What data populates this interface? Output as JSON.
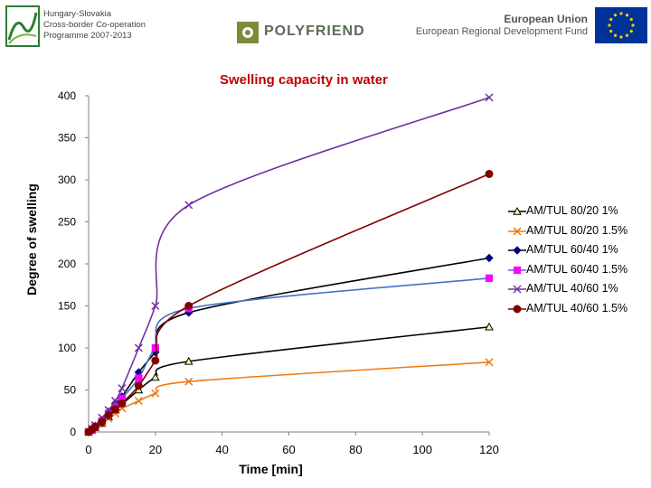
{
  "header": {
    "programme_lines": [
      "Hungary-Slovakia",
      "Cross-border Co-operation",
      "Programme 2007-2013"
    ],
    "project_name": "POLYFRIEND",
    "eu_line1": "European Union",
    "eu_line2": "European Regional Development Fund"
  },
  "chart_data": {
    "type": "line",
    "title": "Swelling capacity in water",
    "xlabel": "Time [min]",
    "ylabel": "Degree of swelling",
    "xlim": [
      0,
      120
    ],
    "ylim": [
      0,
      400
    ],
    "x_ticks": [
      0,
      20,
      40,
      60,
      80,
      100,
      120
    ],
    "y_ticks": [
      0,
      50,
      100,
      150,
      200,
      250,
      300,
      350,
      400
    ],
    "legend_position": "right",
    "series": [
      {
        "name": "AM/TUL 80/20 1%",
        "color": "#000000",
        "line_color": "#000000",
        "marker": "triangle",
        "x": [
          0,
          1,
          2,
          4,
          6,
          8,
          10,
          15,
          20,
          30,
          120
        ],
        "y": [
          0,
          2,
          5,
          10,
          18,
          26,
          33,
          50,
          65,
          84,
          125
        ]
      },
      {
        "name": "AM/TUL 80/20 1.5%",
        "color": "#f07a14",
        "line_color": "#f07a14",
        "marker": "x",
        "x": [
          0,
          1,
          2,
          4,
          6,
          8,
          10,
          15,
          20,
          30,
          120
        ],
        "y": [
          0,
          2,
          5,
          10,
          16,
          22,
          28,
          37,
          46,
          60,
          83
        ]
      },
      {
        "name": "AM/TUL 60/40 1%",
        "color": "#000080",
        "line_color": "#000000",
        "marker": "diamond",
        "x": [
          0,
          1,
          2,
          4,
          6,
          8,
          10,
          15,
          20,
          30,
          120
        ],
        "y": [
          0,
          3,
          7,
          14,
          24,
          34,
          42,
          71,
          95,
          142,
          207
        ]
      },
      {
        "name": "AM/TUL 60/40 1.5%",
        "color": "#ff00ff",
        "line_color": "#4472c4",
        "marker": "square",
        "x": [
          0,
          1,
          2,
          4,
          6,
          8,
          10,
          15,
          20,
          30,
          120
        ],
        "y": [
          0,
          3,
          6,
          13,
          22,
          30,
          40,
          64,
          100,
          147,
          183
        ]
      },
      {
        "name": "AM/TUL 40/60 1%",
        "color": "#7030a0",
        "line_color": "#7030a0",
        "marker": "x",
        "x": [
          0,
          1,
          2,
          4,
          6,
          8,
          10,
          15,
          20,
          30,
          120
        ],
        "y": [
          0,
          4,
          8,
          17,
          26,
          37,
          52,
          100,
          150,
          270,
          398
        ]
      },
      {
        "name": "AM/TUL 40/60 1.5%",
        "color": "#800000",
        "line_color": "#800000",
        "marker": "circle",
        "x": [
          0,
          1,
          2,
          4,
          6,
          8,
          10,
          15,
          20,
          30,
          120
        ],
        "y": [
          0,
          3,
          6,
          12,
          20,
          27,
          34,
          55,
          85,
          150,
          307
        ]
      }
    ]
  }
}
